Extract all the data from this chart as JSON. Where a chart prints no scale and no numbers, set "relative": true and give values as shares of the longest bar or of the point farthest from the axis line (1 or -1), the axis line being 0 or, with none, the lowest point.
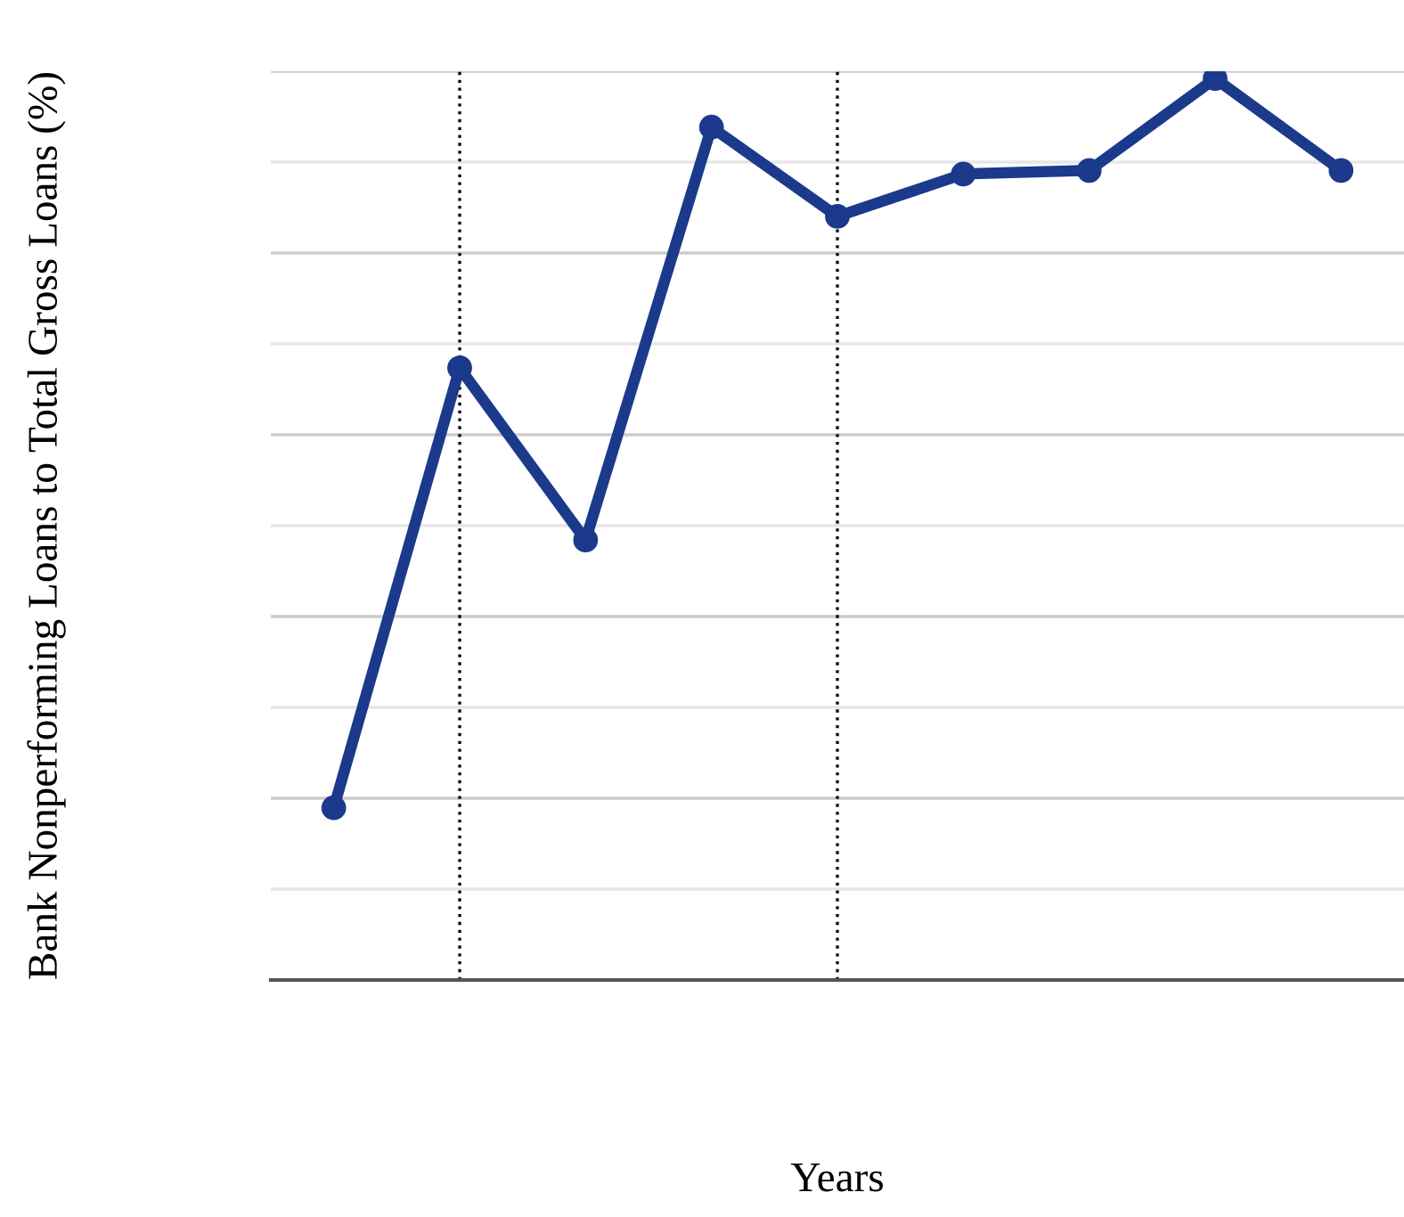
{
  "chart_data": {
    "type": "line",
    "xlabel": "Years",
    "ylabel": "Bank Nonperforming Loans to Total Gross Loans (%)",
    "categories": [
      null,
      null,
      null,
      null,
      null,
      null,
      null,
      null,
      null
    ],
    "series": [
      {
        "color": "#1b3a8c",
        "values": [
          0.191,
          0.679,
          0.488,
          0.946,
          0.847,
          0.894,
          0.898,
          1,
          0.898
        ]
      }
    ],
    "relative": true,
    "marker": "circle",
    "line_style": "solid",
    "grid": "y"
  }
}
